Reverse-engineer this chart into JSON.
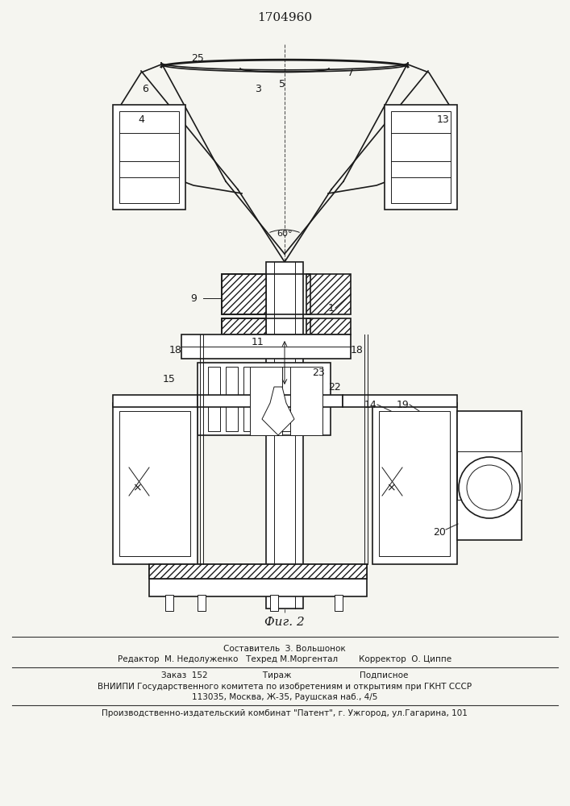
{
  "title": "1704960",
  "fig_label": "Фиг. 2",
  "footer_line1": "Составитель  З. Вольшонок",
  "footer_line2": "Редактор  М. Недолуженко   Техред М.Моргентал        Корректор  О. Циппе",
  "footer_line3": "Заказ  152                     Тираж                          Подписное",
  "footer_line4": "ВНИИПИ Государственного комитета по изобретениям и открытиям при ГКНТ СССР",
  "footer_line5": "113035, Москва, Ж-35, Раушская наб., 4/5",
  "footer_line6": "Производственно-издательский комбинат \"Патент\", г. Ужгород, ул.Гагарина, 101",
  "bg_color": "#f5f5f0",
  "line_color": "#1a1a1a",
  "hatch_color": "#1a1a1a",
  "angle_label": "60°"
}
